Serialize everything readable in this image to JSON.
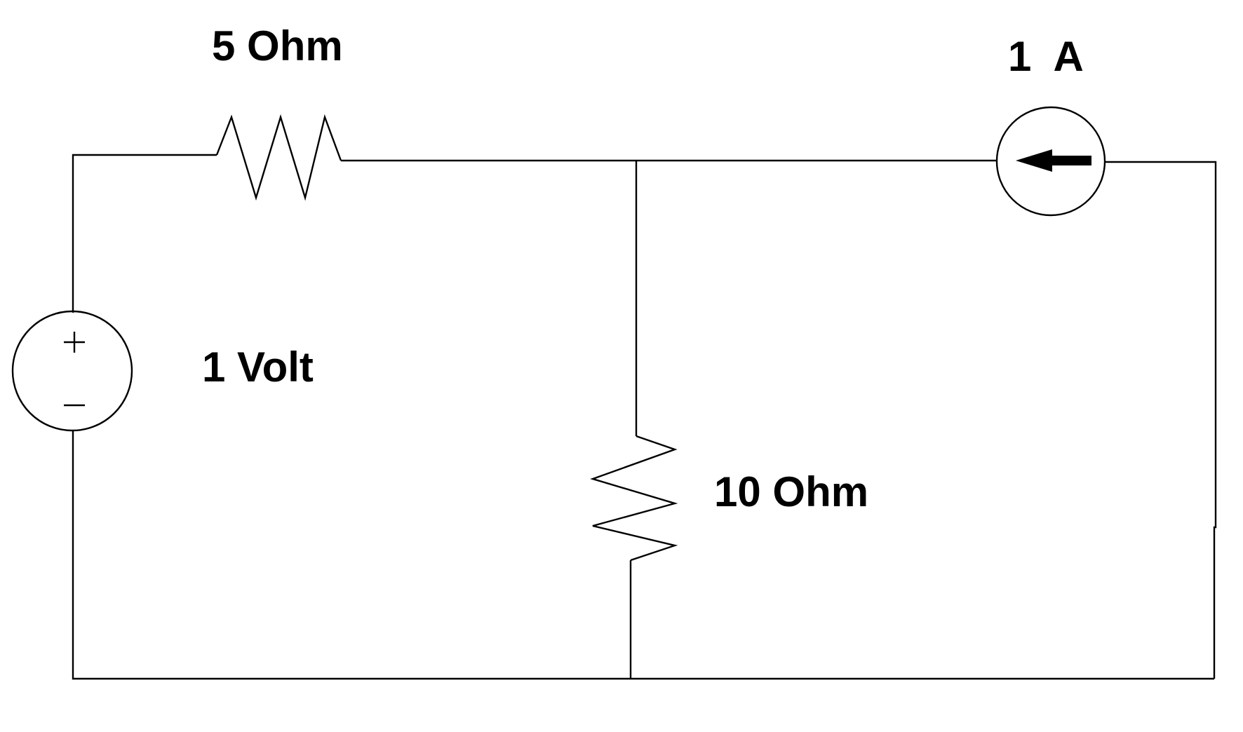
{
  "components": {
    "resistor_top": {
      "label": "5 Ohm"
    },
    "resistor_middle": {
      "label": "10 Ohm"
    },
    "voltage_source": {
      "label": "1 Volt"
    },
    "current_source": {
      "label": "1  A"
    }
  },
  "colors": {
    "background": "#ffffff",
    "stroke": "#000000"
  }
}
